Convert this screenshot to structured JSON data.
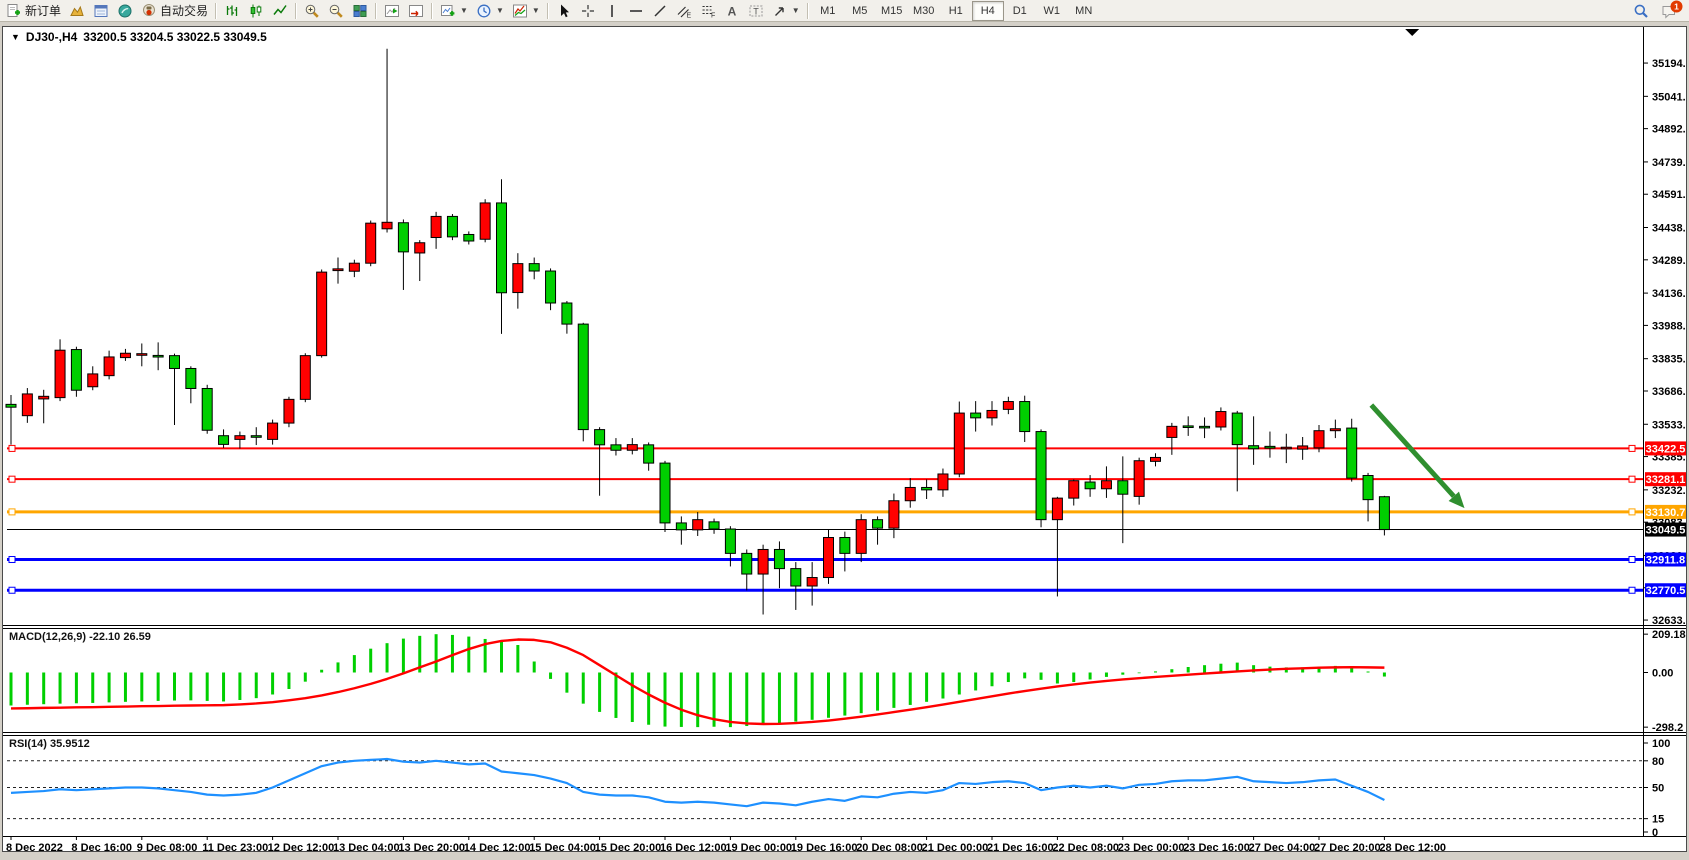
{
  "app": {
    "name": "MetaTrader terminal"
  },
  "toolbar": {
    "groups": [
      [
        {
          "name": "new-order",
          "icon": "new-order-icon",
          "label": "新订单"
        },
        {
          "name": "profiles",
          "icon": "profiles-icon"
        },
        {
          "name": "market-watch",
          "icon": "market-watch-icon"
        },
        {
          "name": "navigator",
          "icon": "navigator-icon"
        },
        {
          "name": "autotrading",
          "icon": "autotrading-icon",
          "label": "自动交易"
        }
      ],
      [
        {
          "name": "bar-chart",
          "icon": "bar-chart-icon"
        },
        {
          "name": "candlestick-chart",
          "icon": "candlestick-icon"
        },
        {
          "name": "line-chart",
          "icon": "line-chart-icon"
        }
      ],
      [
        {
          "name": "zoom-in",
          "icon": "zoom-in-icon"
        },
        {
          "name": "zoom-out",
          "icon": "zoom-out-icon"
        },
        {
          "name": "tile-windows",
          "icon": "tile-windows-icon"
        }
      ],
      [
        {
          "name": "chart-shift",
          "icon": "chart-shift-icon"
        },
        {
          "name": "auto-scroll",
          "icon": "auto-scroll-icon"
        }
      ],
      [
        {
          "name": "new-chart",
          "icon": "new-chart-icon",
          "dropdown": true
        },
        {
          "name": "periods",
          "icon": "periods-icon",
          "dropdown": true
        },
        {
          "name": "indicators",
          "icon": "indicators-icon",
          "dropdown": true
        }
      ],
      [
        {
          "name": "cursor",
          "icon": "cursor-icon"
        },
        {
          "name": "crosshair",
          "icon": "crosshair-icon"
        },
        {
          "name": "vertical-line",
          "icon": "vertical-line-icon"
        },
        {
          "name": "horizontal-line",
          "icon": "horizontal-line-icon"
        },
        {
          "name": "trendline",
          "icon": "trendline-icon"
        },
        {
          "name": "equidistant-channel",
          "icon": "channel-icon"
        },
        {
          "name": "fibonacci",
          "icon": "fibonacci-icon"
        },
        {
          "name": "text",
          "icon": "text-icon"
        },
        {
          "name": "text-label",
          "icon": "text-label-icon"
        },
        {
          "name": "arrows",
          "icon": "arrows-icon",
          "dropdown": true
        }
      ]
    ],
    "timeframes": [
      "M1",
      "M5",
      "M15",
      "M30",
      "H1",
      "H4",
      "D1",
      "W1",
      "MN"
    ],
    "active_timeframe": "H4",
    "right": [
      {
        "name": "search",
        "icon": "search-icon"
      },
      {
        "name": "notifications",
        "icon": "chat-icon",
        "badge": "1"
      }
    ]
  },
  "chart_title": {
    "collapse_glyph": "▼",
    "symbol_period": "DJ30-,H4",
    "ohlc": "33200.5 33204.5 33022.5 33049.5"
  },
  "price_axis": {
    "ticks": [
      35194.0,
      35041.0,
      34892.5,
      34739.5,
      34591.0,
      34438.0,
      34289.5,
      34136.5,
      33988.0,
      33835.0,
      33686.5,
      33533.5,
      33385.0,
      33232.0,
      33083.5,
      32930.5,
      32782.0,
      32633.5
    ]
  },
  "objects": {
    "hlines": [
      {
        "name": "resistance-line-1",
        "price": 33422.5,
        "label": "33422.5",
        "color": "#ff0000",
        "width": 2
      },
      {
        "name": "resistance-line-2",
        "price": 33281.1,
        "label": "33281.1",
        "color": "#ff0000",
        "width": 2
      },
      {
        "name": "support-line-orange",
        "price": 33130.7,
        "label": "33130.7",
        "color": "#ffa600",
        "width": 3
      },
      {
        "name": "support-line-blue-1",
        "price": 32911.8,
        "label": "32911.8",
        "color": "#0000ff",
        "width": 3
      },
      {
        "name": "support-line-blue-2",
        "price": 32770.5,
        "label": "32770.5",
        "color": "#0000ff",
        "width": 3
      }
    ],
    "bid_line": {
      "price": 33049.5,
      "label": "33049.5",
      "color": "#000000"
    },
    "arrow": {
      "from": {
        "bar": 83.2,
        "price": 33622
      },
      "to": {
        "bar": 88.9,
        "price": 33148
      },
      "color": "#2f8f2f"
    },
    "shift_marker": {
      "bar": 85.7
    }
  },
  "chart_data": {
    "type": "candlestick",
    "symbol": "DJ30-",
    "period": "H4",
    "last_bar_ohlc": {
      "open": 33200.5,
      "high": 33204.5,
      "low": 33022.5,
      "close": 33049.5
    },
    "candles": [
      [
        33625,
        33668,
        33440,
        33612
      ],
      [
        33573,
        33700,
        33540,
        33673
      ],
      [
        33650,
        33692,
        33538,
        33662
      ],
      [
        33656,
        33924,
        33640,
        33874
      ],
      [
        33877,
        33890,
        33660,
        33690
      ],
      [
        33706,
        33800,
        33690,
        33765
      ],
      [
        33757,
        33872,
        33740,
        33843
      ],
      [
        33840,
        33880,
        33825,
        33860
      ],
      [
        33852,
        33905,
        33800,
        33858
      ],
      [
        33850,
        33910,
        33782,
        33846
      ],
      [
        33849,
        33858,
        33530,
        33790
      ],
      [
        33790,
        33800,
        33630,
        33698
      ],
      [
        33698,
        33715,
        33490,
        33506
      ],
      [
        33481,
        33510,
        33425,
        33441
      ],
      [
        33464,
        33500,
        33422,
        33481
      ],
      [
        33481,
        33520,
        33438,
        33478
      ],
      [
        33464,
        33555,
        33440,
        33539
      ],
      [
        33539,
        33660,
        33520,
        33648
      ],
      [
        33648,
        33860,
        33635,
        33849
      ],
      [
        33849,
        34245,
        33840,
        34233
      ],
      [
        34240,
        34300,
        34180,
        34248
      ],
      [
        34237,
        34290,
        34210,
        34274
      ],
      [
        34274,
        34470,
        34260,
        34458
      ],
      [
        34432,
        35260,
        34415,
        34462
      ],
      [
        34460,
        34475,
        34151,
        34326
      ],
      [
        34321,
        34380,
        34192,
        34368
      ],
      [
        34392,
        34510,
        34340,
        34489
      ],
      [
        34489,
        34500,
        34380,
        34395
      ],
      [
        34406,
        34420,
        34360,
        34376
      ],
      [
        34384,
        34568,
        34370,
        34551
      ],
      [
        34551,
        34660,
        33949,
        34138
      ],
      [
        34139,
        34320,
        34065,
        34272
      ],
      [
        34272,
        34300,
        34200,
        34238
      ],
      [
        34238,
        34250,
        34058,
        34091
      ],
      [
        34091,
        34100,
        33950,
        33994
      ],
      [
        33994,
        34000,
        33455,
        33509
      ],
      [
        33509,
        33520,
        33205,
        33439
      ],
      [
        33439,
        33470,
        33390,
        33414
      ],
      [
        33414,
        33470,
        33395,
        33440
      ],
      [
        33439,
        33450,
        33320,
        33355
      ],
      [
        33355,
        33365,
        33038,
        33080
      ],
      [
        33080,
        33110,
        32980,
        33048
      ],
      [
        33048,
        33130,
        33020,
        33095
      ],
      [
        33085,
        33100,
        33030,
        33052
      ],
      [
        33052,
        33065,
        32880,
        32940
      ],
      [
        32940,
        32958,
        32770,
        32845
      ],
      [
        32845,
        32980,
        32659,
        32958
      ],
      [
        32958,
        32995,
        32780,
        32870
      ],
      [
        32870,
        32900,
        32680,
        32790
      ],
      [
        32790,
        32900,
        32700,
        32829
      ],
      [
        32829,
        33048,
        32800,
        33013
      ],
      [
        33013,
        33040,
        32857,
        32940
      ],
      [
        32940,
        33120,
        32900,
        33095
      ],
      [
        33095,
        33110,
        32980,
        33056
      ],
      [
        33056,
        33215,
        33010,
        33182
      ],
      [
        33182,
        33286,
        33150,
        33243
      ],
      [
        33243,
        33280,
        33190,
        33232
      ],
      [
        33232,
        33330,
        33200,
        33305
      ],
      [
        33305,
        33638,
        33290,
        33585
      ],
      [
        33585,
        33640,
        33500,
        33563
      ],
      [
        33563,
        33640,
        33528,
        33597
      ],
      [
        33602,
        33660,
        33580,
        33638
      ],
      [
        33638,
        33665,
        33452,
        33500
      ],
      [
        33500,
        33510,
        33060,
        33095
      ],
      [
        33095,
        33200,
        32742,
        33194
      ],
      [
        33194,
        33280,
        33160,
        33274
      ],
      [
        33268,
        33300,
        33200,
        33237
      ],
      [
        33237,
        33340,
        33195,
        33274
      ],
      [
        33274,
        33386,
        32987,
        33212
      ],
      [
        33202,
        33380,
        33164,
        33366
      ],
      [
        33363,
        33400,
        33340,
        33381
      ],
      [
        33473,
        33540,
        33393,
        33524
      ],
      [
        33526,
        33570,
        33480,
        33521
      ],
      [
        33524,
        33565,
        33470,
        33519
      ],
      [
        33521,
        33611,
        33505,
        33592
      ],
      [
        33585,
        33595,
        33225,
        33440
      ],
      [
        33435,
        33570,
        33347,
        33421
      ],
      [
        33432,
        33500,
        33380,
        33424
      ],
      [
        33424,
        33490,
        33355,
        33428
      ],
      [
        33419,
        33475,
        33370,
        33434
      ],
      [
        33425,
        33530,
        33405,
        33504
      ],
      [
        33504,
        33555,
        33470,
        33513
      ],
      [
        33516,
        33559,
        33270,
        33286
      ],
      [
        33298,
        33310,
        33087,
        33187
      ],
      [
        33200.5,
        33204.5,
        33022.5,
        33049.5
      ]
    ],
    "time_labels": [
      {
        "bar": 0,
        "label": "8 Dec 2022"
      },
      {
        "bar": 4,
        "label": "8 Dec 16:00"
      },
      {
        "bar": 8,
        "label": "9 Dec 08:00"
      },
      {
        "bar": 12,
        "label": "11 Dec 23:00"
      },
      {
        "bar": 16,
        "label": "12 Dec 12:00"
      },
      {
        "bar": 20,
        "label": "13 Dec 04:00"
      },
      {
        "bar": 24,
        "label": "13 Dec 20:00"
      },
      {
        "bar": 28,
        "label": "14 Dec 12:00"
      },
      {
        "bar": 32,
        "label": "15 Dec 04:00"
      },
      {
        "bar": 36,
        "label": "15 Dec 20:00"
      },
      {
        "bar": 40,
        "label": "16 Dec 12:00"
      },
      {
        "bar": 44,
        "label": "19 Dec 00:00"
      },
      {
        "bar": 48,
        "label": "19 Dec 16:00"
      },
      {
        "bar": 52,
        "label": "20 Dec 08:00"
      },
      {
        "bar": 56,
        "label": "21 Dec 00:00"
      },
      {
        "bar": 60,
        "label": "21 Dec 16:00"
      },
      {
        "bar": 64,
        "label": "22 Dec 08:00"
      },
      {
        "bar": 68,
        "label": "23 Dec 00:00"
      },
      {
        "bar": 72,
        "label": "23 Dec 16:00"
      },
      {
        "bar": 76,
        "label": "27 Dec 04:00"
      },
      {
        "bar": 80,
        "label": "27 Dec 20:00"
      },
      {
        "bar": 84,
        "label": "28 Dec 12:00"
      }
    ],
    "macd": {
      "label": "MACD(12,26,9)",
      "values_text": "-22.10 26.59",
      "axis_ticks": [
        {
          "v": 209.18,
          "t": "209.18"
        },
        {
          "v": 0,
          "t": "0.00"
        },
        {
          "v": -298.2,
          "t": "-298.2"
        }
      ],
      "histogram": [
        -180,
        -176,
        -173,
        -170,
        -168,
        -166,
        -163,
        -160,
        -158,
        -155,
        -153,
        -152,
        -155,
        -158,
        -150,
        -140,
        -120,
        -90,
        -50,
        15,
        55,
        95,
        130,
        160,
        185,
        200,
        209,
        205,
        196,
        183,
        168,
        150,
        60,
        -35,
        -110,
        -170,
        -215,
        -248,
        -270,
        -285,
        -295,
        -297,
        -298,
        -296,
        -298,
        -292,
        -285,
        -277,
        -268,
        -258,
        -247,
        -235,
        -222,
        -208,
        -193,
        -177,
        -160,
        -142,
        -120,
        -98,
        -75,
        -52,
        -32,
        -40,
        -60,
        -52,
        -38,
        -24,
        -12,
        -4,
        6,
        18,
        30,
        40,
        48,
        54,
        40,
        32,
        28,
        28,
        32,
        36,
        22,
        0,
        -22.1
      ],
      "signal": [
        -196,
        -195,
        -193,
        -192,
        -190,
        -189,
        -187,
        -186,
        -184,
        -183,
        -181,
        -180,
        -179,
        -178,
        -174,
        -169,
        -162,
        -152,
        -140,
        -125,
        -107,
        -86,
        -62,
        -35,
        -5,
        28,
        60,
        95,
        128,
        155,
        172,
        180,
        178,
        165,
        135,
        95,
        40,
        -15,
        -70,
        -120,
        -165,
        -203,
        -233,
        -255,
        -270,
        -278,
        -281,
        -280,
        -276,
        -270,
        -262,
        -252,
        -241,
        -229,
        -216,
        -203,
        -189,
        -175,
        -160,
        -145,
        -130,
        -115,
        -101,
        -88,
        -76,
        -65,
        -55,
        -46,
        -38,
        -31,
        -24,
        -18,
        -12,
        -6,
        0,
        6,
        11,
        16,
        20,
        23,
        26,
        28,
        29,
        28,
        26.59
      ]
    },
    "rsi": {
      "label": "RSI(14)",
      "value_text": "35.9512",
      "axis_ticks": [
        {
          "v": 100,
          "t": "100"
        },
        {
          "v": 80,
          "t": "80"
        },
        {
          "v": 50,
          "t": "50"
        },
        {
          "v": 15,
          "t": "15"
        },
        {
          "v": 0,
          "t": "0"
        }
      ],
      "dashed_levels": [
        80,
        50,
        15
      ],
      "values": [
        44,
        45,
        46,
        48,
        47,
        48,
        49,
        50,
        50,
        49,
        47,
        45,
        42,
        41,
        42,
        44,
        50,
        58,
        66,
        74,
        78,
        80,
        81,
        82,
        79,
        78,
        80,
        78,
        76,
        77,
        68,
        66,
        64,
        60,
        55,
        45,
        42,
        41,
        41,
        39,
        34,
        33,
        34,
        33,
        31,
        29,
        33,
        32,
        30,
        34,
        37,
        35,
        40,
        39,
        43,
        45,
        44,
        47,
        55,
        54,
        56,
        57,
        55,
        47,
        50,
        52,
        50,
        52,
        49,
        53,
        54,
        57,
        58,
        58,
        60,
        62,
        57,
        56,
        55,
        56,
        58,
        59,
        52,
        45,
        35.95
      ]
    }
  },
  "colors": {
    "bull_candle": "#ff0000",
    "bear_candle": "#00cf00",
    "wick": "#000000",
    "macd_histogram": "#00cf00",
    "macd_signal": "#ff0000",
    "rsi_line": "#1e90ff",
    "badge_text": "#ffffff",
    "axis_text": "#000000"
  }
}
